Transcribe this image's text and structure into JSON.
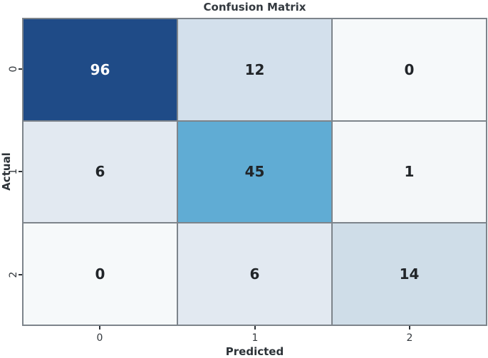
{
  "colors": {
    "figure_bg": "#ffffff",
    "grid_line": "#7d848b",
    "tick_mark": "#2e3338",
    "tick_text": "#33383d",
    "title_text": "#343a40",
    "label_text": "#2c3237",
    "annot_light": "#ffffff",
    "annot_dark": "#212529",
    "colormap_min": "#f6f9fa",
    "colormap_max": "#1f4b87"
  },
  "chart_data": {
    "type": "heatmap",
    "title": "Confusion Matrix",
    "xlabel": "Predicted",
    "ylabel": "Actual",
    "x_ticklabels": [
      "0",
      "1",
      "2"
    ],
    "y_ticklabels": [
      "0",
      "1",
      "2"
    ],
    "matrix": [
      [
        96,
        12,
        0
      ],
      [
        6,
        45,
        1
      ],
      [
        0,
        6,
        14
      ]
    ],
    "cell_colors": [
      [
        "#1f4b87",
        "#d3e0ec",
        "#f6f9fa"
      ],
      [
        "#e2e9f1",
        "#60acd4",
        "#f4f7f9"
      ],
      [
        "#f6f9fa",
        "#e2e9f1",
        "#cfdde8"
      ]
    ],
    "text_colors": [
      [
        "#ffffff",
        "#212529",
        "#212529"
      ],
      [
        "#212529",
        "#212529",
        "#212529"
      ],
      [
        "#212529",
        "#212529",
        "#212529"
      ]
    ],
    "colormap": "Blues",
    "value_range": [
      0,
      96
    ],
    "legend": "none",
    "grid": "cell-borders",
    "annotations": "bold-values"
  }
}
